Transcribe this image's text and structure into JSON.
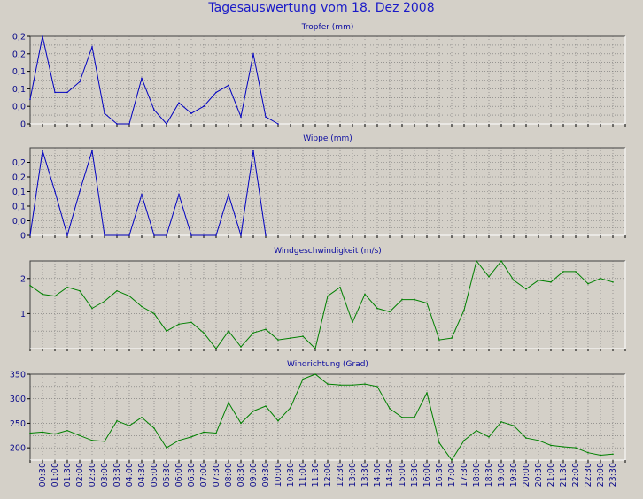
{
  "page_title": "Tagesauswertung vom 18. Dez 2008",
  "x_ticks": [
    "00:30",
    "01:00",
    "01:30",
    "02:00",
    "02:30",
    "03:00",
    "03:30",
    "04:00",
    "04:30",
    "05:00",
    "05:30",
    "06:00",
    "06:30",
    "07:00",
    "07:30",
    "08:00",
    "08:30",
    "09:00",
    "09:30",
    "10:00",
    "10:30",
    "11:00",
    "11:30",
    "12:00",
    "12:30",
    "13:00",
    "13:30",
    "14:00",
    "14:30",
    "15:00",
    "15:30",
    "16:00",
    "16:30",
    "17:00",
    "17:30",
    "18:00",
    "18:30",
    "19:00",
    "19:30",
    "20:00",
    "20:30",
    "21:00",
    "21:30",
    "22:00",
    "22:30",
    "23:00",
    "23:30"
  ],
  "colors": {
    "blue": "#0000c0",
    "green": "#008000",
    "plot_bg": "#d4d0c8",
    "grid": "#707070"
  },
  "chart_data": [
    {
      "type": "line",
      "title": "Tropfer (mm)",
      "ylim": [
        0,
        0.25
      ],
      "ytick_values": [
        0,
        0.05,
        0.1,
        0.15,
        0.2,
        0.25
      ],
      "ytick_labels": [
        "0",
        "0,0",
        "0,1",
        "0,1",
        "0,2",
        "0,2"
      ],
      "color": "blue",
      "grid": true,
      "series": [
        {
          "values": [
            0.07,
            0.25,
            0.09,
            0.09,
            0.12,
            0.22,
            0.03,
            0.0,
            0.0,
            0.13,
            0.04,
            0.0,
            0.06,
            0.03,
            0.05,
            0.09,
            0.11,
            0.02,
            0.2,
            0.02,
            0.0
          ]
        }
      ]
    },
    {
      "type": "line",
      "title": "Wippe (mm)",
      "ylim": [
        0,
        0.3
      ],
      "ytick_values": [
        0,
        0.05,
        0.1,
        0.15,
        0.2,
        0.25
      ],
      "ytick_labels": [
        "0",
        "0,0",
        "0,1",
        "0,1",
        "0,2",
        "0,2"
      ],
      "color": "blue",
      "grid": true,
      "series": [
        {
          "values": [
            0,
            0.29,
            0.15,
            0,
            0.15,
            0.29,
            0,
            0,
            0,
            0.14,
            0,
            0,
            0.14,
            0,
            0,
            0,
            0.14,
            0,
            0.29,
            0
          ]
        }
      ]
    },
    {
      "type": "line",
      "title": "Windgeschwindigkeit (m/s)",
      "ylim": [
        0,
        2.5
      ],
      "ytick_values": [
        1,
        2
      ],
      "ytick_labels": [
        "1",
        "2"
      ],
      "color": "green",
      "grid": true,
      "series": [
        {
          "values": [
            1.8,
            1.55,
            1.5,
            1.75,
            1.65,
            1.15,
            1.35,
            1.65,
            1.5,
            1.2,
            1.0,
            0.5,
            0.7,
            0.75,
            0.45,
            0.0,
            0.5,
            0.05,
            0.45,
            0.55,
            0.25,
            0.3,
            0.35,
            0.0,
            1.5,
            1.75,
            0.75,
            1.55,
            1.15,
            1.05,
            1.4,
            1.4,
            1.3,
            0.25,
            0.3,
            1.1,
            2.5,
            2.05,
            2.5,
            1.95,
            1.7,
            1.95,
            1.9,
            2.2,
            2.2,
            1.85,
            2.0,
            1.9
          ]
        }
      ]
    },
    {
      "type": "line",
      "title": "Windrichtung (Grad)",
      "ylim": [
        175,
        350
      ],
      "ytick_values": [
        200,
        250,
        300,
        350
      ],
      "ytick_labels": [
        "200",
        "250",
        "300",
        "350"
      ],
      "color": "green",
      "grid": true,
      "series": [
        {
          "values": [
            230,
            232,
            228,
            235,
            225,
            215,
            213,
            255,
            245,
            262,
            240,
            200,
            215,
            222,
            232,
            230,
            292,
            250,
            275,
            285,
            255,
            282,
            340,
            350,
            330,
            328,
            328,
            330,
            325,
            280,
            262,
            262,
            312,
            210,
            175,
            215,
            235,
            222,
            253,
            245,
            220,
            215,
            205,
            202,
            200,
            190,
            185,
            187
          ]
        }
      ]
    }
  ]
}
